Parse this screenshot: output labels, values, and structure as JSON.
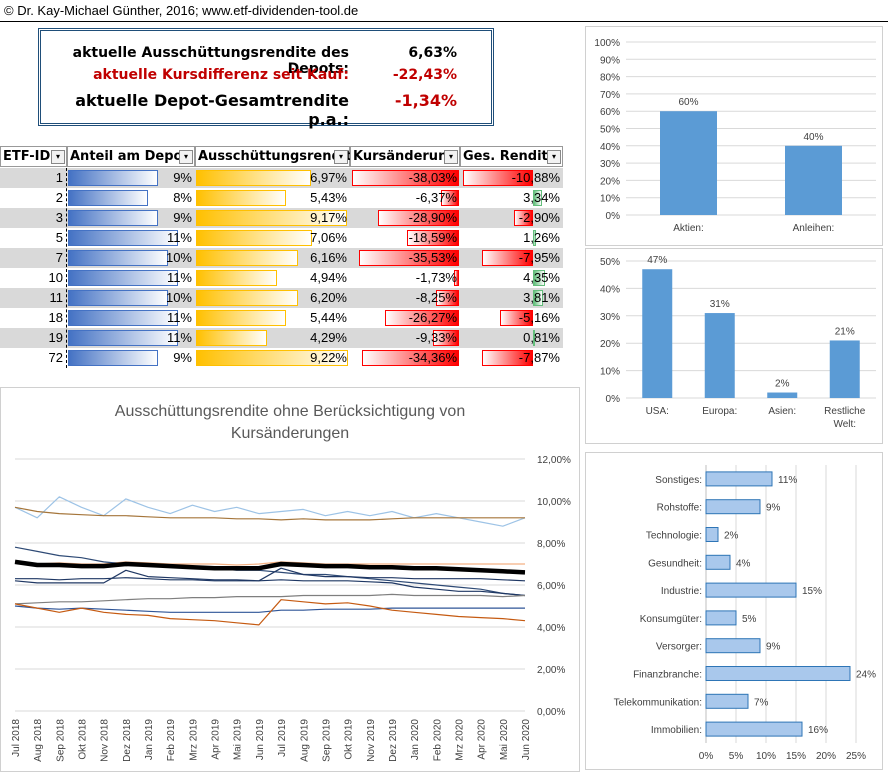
{
  "header": {
    "text": "© Dr. Kay-Michael Günther, 2016; www.etf-dividenden-tool.de"
  },
  "summary": {
    "row1_label": "aktuelle Ausschüttungsrendite des Depots:",
    "row1_value": "6,63%",
    "row2_label": "aktuelle Kursdifferenz seit Kauf:",
    "row2_value": "-22,43%",
    "row3_label": "aktuelle Depot-Gesamtrendite p.a.:",
    "row3_value": "-1,34%"
  },
  "table": {
    "columns": [
      "ETF-ID",
      "Anteil am Depot",
      "Ausschüttungsrendite",
      "Kursänderung",
      "Ges. Rendite"
    ],
    "rows": [
      {
        "id": "1",
        "anteil": "9%",
        "anteil_v": 9,
        "aus": "6,97%",
        "aus_v": 6.97,
        "kurs": "-38,03%",
        "kurs_v": -38.03,
        "ges": "-10,88%",
        "ges_v": -10.88
      },
      {
        "id": "2",
        "anteil": "8%",
        "anteil_v": 8,
        "aus": "5,43%",
        "aus_v": 5.43,
        "kurs": "-6,37%",
        "kurs_v": -6.37,
        "ges": "3,34%",
        "ges_v": 3.34
      },
      {
        "id": "3",
        "anteil": "9%",
        "anteil_v": 9,
        "aus": "9,17%",
        "aus_v": 9.17,
        "kurs": "-28,90%",
        "kurs_v": -28.9,
        "ges": "-2,90%",
        "ges_v": -2.9
      },
      {
        "id": "5",
        "anteil": "11%",
        "anteil_v": 11,
        "aus": "7,06%",
        "aus_v": 7.06,
        "kurs": "-18,59%",
        "kurs_v": -18.59,
        "ges": "1,26%",
        "ges_v": 1.26
      },
      {
        "id": "7",
        "anteil": "10%",
        "anteil_v": 10,
        "aus": "6,16%",
        "aus_v": 6.16,
        "kurs": "-35,53%",
        "kurs_v": -35.53,
        "ges": "-7,95%",
        "ges_v": -7.95
      },
      {
        "id": "10",
        "anteil": "11%",
        "anteil_v": 11,
        "aus": "4,94%",
        "aus_v": 4.94,
        "kurs": "-1,73%",
        "kurs_v": -1.73,
        "ges": "4,35%",
        "ges_v": 4.35
      },
      {
        "id": "11",
        "anteil": "10%",
        "anteil_v": 10,
        "aus": "6,20%",
        "aus_v": 6.2,
        "kurs": "-8,25%",
        "kurs_v": -8.25,
        "ges": "3,81%",
        "ges_v": 3.81
      },
      {
        "id": "18",
        "anteil": "11%",
        "anteil_v": 11,
        "aus": "5,44%",
        "aus_v": 5.44,
        "kurs": "-26,27%",
        "kurs_v": -26.27,
        "ges": "-5,16%",
        "ges_v": -5.16
      },
      {
        "id": "19",
        "anteil": "11%",
        "anteil_v": 11,
        "aus": "4,29%",
        "aus_v": 4.29,
        "kurs": "-9,33%",
        "kurs_v": -9.33,
        "ges": "0,81%",
        "ges_v": 0.81
      },
      {
        "id": "72",
        "anteil": "9%",
        "anteil_v": 9,
        "aus": "9,22%",
        "aus_v": 9.22,
        "kurs": "-34,36%",
        "kurs_v": -34.36,
        "ges": "-7,87%",
        "ges_v": -7.87
      }
    ]
  },
  "colors": {
    "blue_bar": "#5b9bd5",
    "anteil_bar": "#4472c4",
    "aus_bar": "#ffc000",
    "kurs_bar": "#ff0000",
    "ges_pos": "#63be7b",
    "ges_neg": "#ff0000",
    "black_line": "#000000"
  },
  "chart_data": [
    {
      "type": "bar",
      "categories": [
        "Aktien:",
        "Anleihen:"
      ],
      "values": [
        60,
        40
      ],
      "data_labels": [
        "60%",
        "40%"
      ],
      "yticks": [
        "100%",
        "90%",
        "80%",
        "70%",
        "60%",
        "50%",
        "40%",
        "30%",
        "20%",
        "10%",
        "0%"
      ],
      "ylim": [
        0,
        100
      ]
    },
    {
      "type": "bar",
      "categories": [
        "USA:",
        "Europa:",
        "Asien:",
        "Restliche Welt:"
      ],
      "category_lines": [
        [
          "USA:"
        ],
        [
          "Europa:"
        ],
        [
          "Asien:"
        ],
        [
          "Restliche",
          "Welt:"
        ]
      ],
      "values": [
        47,
        31,
        2,
        21
      ],
      "data_labels": [
        "47%",
        "31%",
        "2%",
        "21%"
      ],
      "yticks": [
        "50%",
        "40%",
        "30%",
        "20%",
        "10%",
        "0%"
      ],
      "ylim": [
        0,
        50
      ]
    },
    {
      "type": "bar",
      "orientation": "horizontal",
      "categories": [
        "Sonstiges:",
        "Rohstoffe:",
        "Technologie:",
        "Gesundheit:",
        "Industrie:",
        "Konsumgüter:",
        "Versorger:",
        "Finanzbranche:",
        "Telekommunikation:",
        "Immobilien:"
      ],
      "values": [
        11,
        9,
        2,
        4,
        15,
        5,
        9,
        24,
        7,
        16
      ],
      "data_labels": [
        "11%",
        "9%",
        "2%",
        "4%",
        "15%",
        "5%",
        "9%",
        "24%",
        "7%",
        "16%"
      ],
      "xticks": [
        "0%",
        "5%",
        "10%",
        "15%",
        "20%",
        "25%"
      ],
      "xlim": [
        0,
        25
      ]
    },
    {
      "type": "line",
      "title": "Ausschüttungsrendite ohne Berücksichtigung von Kursänderungen",
      "title_lines": [
        "Ausschüttungsrendite ohne Berücksichtigung von",
        "Kursänderungen"
      ],
      "x": [
        "Jul 2018",
        "Aug 2018",
        "Sep 2018",
        "Okt 2018",
        "Nov 2018",
        "Dez 2018",
        "Jan 2019",
        "Feb 2019",
        "Mrz 2019",
        "Apr 2019",
        "Mai 2019",
        "Jun 2019",
        "Jul 2019",
        "Aug 2019",
        "Sep 2019",
        "Okt 2019",
        "Nov 2019",
        "Dez 2019",
        "Jan 2020",
        "Feb 2020",
        "Mrz 2020",
        "Apr 2020",
        "Mai 2020",
        "Jun 2020"
      ],
      "yticks": [
        "12,00%",
        "10,00%",
        "8,00%",
        "6,00%",
        "4,00%",
        "2,00%",
        "0,00%"
      ],
      "ylim": [
        0,
        12
      ],
      "series": [
        {
          "color": "#9dc3e6",
          "width": 1.2,
          "values": [
            9.7,
            9.2,
            10.2,
            9.7,
            9.3,
            10.1,
            9.7,
            9.4,
            9.8,
            9.5,
            9.7,
            9.4,
            9.5,
            9.6,
            9.3,
            9.5,
            9.3,
            9.5,
            9.2,
            9.4,
            9.2,
            9.0,
            8.8,
            9.2
          ]
        },
        {
          "color": "#a5753a",
          "width": 1.2,
          "values": [
            9.7,
            9.5,
            9.4,
            9.35,
            9.3,
            9.3,
            9.25,
            9.2,
            9.2,
            9.2,
            9.15,
            9.15,
            9.1,
            9.15,
            9.1,
            9.1,
            9.1,
            9.15,
            9.2,
            9.2,
            9.2,
            9.2,
            9.2,
            9.2
          ]
        },
        {
          "color": "#f4b183",
          "width": 1.2,
          "values": [
            7.1,
            7.0,
            7.05,
            7.0,
            7.0,
            7.1,
            7.05,
            7.0,
            7.0,
            7.0,
            6.95,
            7.0,
            7.1,
            7.05,
            7.0,
            7.0,
            7.0,
            7.0,
            7.0,
            7.0,
            7.0,
            7.0,
            7.0,
            7.0
          ]
        },
        {
          "color": "#2e4a75",
          "width": 1.2,
          "values": [
            7.8,
            7.6,
            7.4,
            7.3,
            7.1,
            7.0,
            7.0,
            6.9,
            6.8,
            6.8,
            6.7,
            6.7,
            6.6,
            6.5,
            6.5,
            6.4,
            6.3,
            6.2,
            6.1,
            6.0,
            5.9,
            5.8,
            5.6,
            5.5
          ]
        },
        {
          "color": "#000000",
          "width": 4.5,
          "values": [
            7.1,
            6.95,
            6.95,
            6.9,
            6.9,
            7.0,
            6.95,
            6.9,
            6.85,
            6.8,
            6.8,
            6.8,
            7.0,
            6.95,
            6.9,
            6.9,
            6.85,
            6.85,
            6.8,
            6.8,
            6.75,
            6.7,
            6.65,
            6.6
          ]
        },
        {
          "color": "#203864",
          "width": 1.2,
          "values": [
            6.2,
            6.1,
            6.1,
            6.1,
            6.1,
            6.7,
            6.4,
            6.35,
            6.3,
            6.25,
            6.25,
            6.2,
            6.8,
            6.5,
            6.4,
            6.4,
            6.35,
            6.35,
            6.3,
            6.3,
            6.3,
            6.3,
            6.25,
            6.2
          ]
        },
        {
          "color": "#1f3864",
          "width": 1.2,
          "values": [
            6.3,
            6.3,
            6.25,
            6.3,
            6.3,
            6.35,
            6.3,
            6.25,
            6.25,
            6.2,
            6.2,
            6.2,
            6.25,
            6.2,
            6.2,
            6.2,
            6.15,
            6.1,
            5.9,
            5.8,
            5.7,
            5.7,
            5.6,
            5.5
          ]
        },
        {
          "color": "#7f7f7f",
          "width": 1.2,
          "values": [
            5.1,
            5.15,
            5.2,
            5.2,
            5.25,
            5.3,
            5.35,
            5.35,
            5.4,
            5.4,
            5.45,
            5.45,
            5.45,
            5.5,
            5.5,
            5.5,
            5.5,
            5.55,
            5.5,
            5.5,
            5.5,
            5.5,
            5.45,
            5.5
          ]
        },
        {
          "color": "#2f5597",
          "width": 1.2,
          "values": [
            5.0,
            4.9,
            4.85,
            4.9,
            4.85,
            4.8,
            4.75,
            4.7,
            4.7,
            4.7,
            4.7,
            4.7,
            4.8,
            4.8,
            4.85,
            4.85,
            4.85,
            4.9,
            4.9,
            4.9,
            4.9,
            4.9,
            4.9,
            4.9
          ]
        },
        {
          "color": "#c55a11",
          "width": 1.2,
          "values": [
            5.1,
            4.9,
            4.7,
            4.9,
            4.7,
            4.6,
            4.55,
            4.4,
            4.35,
            4.3,
            4.2,
            4.1,
            5.3,
            5.2,
            5.1,
            5.15,
            5.0,
            4.8,
            4.7,
            4.6,
            4.5,
            4.45,
            4.4,
            4.3
          ]
        }
      ]
    }
  ]
}
